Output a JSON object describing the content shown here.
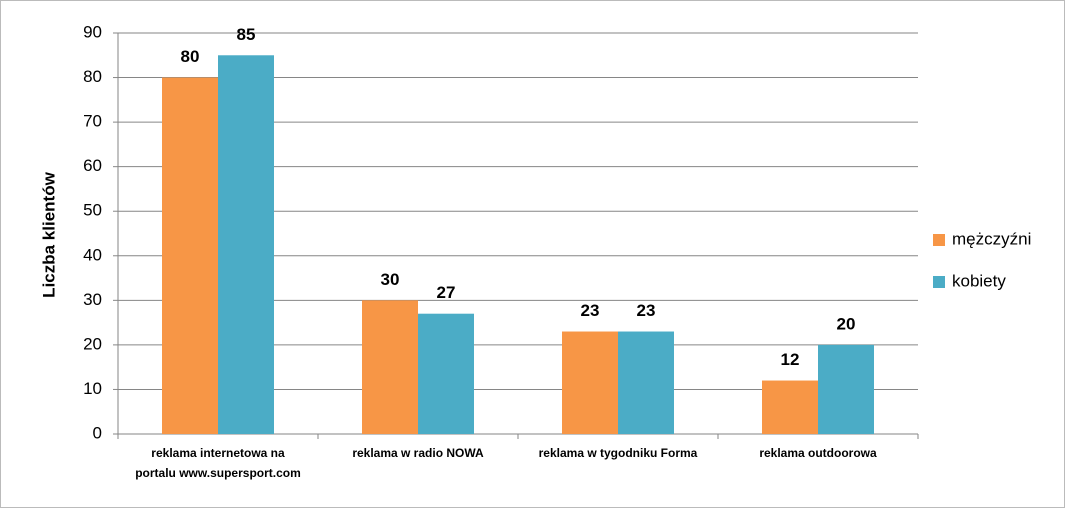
{
  "chart_data": {
    "type": "bar",
    "y_label": "Liczba klientów",
    "categories": [
      "reklama internetowa na portalu www.supersport.com",
      "reklama w radio NOWA",
      "reklama w tygodniku Forma",
      "reklama outdoorowa"
    ],
    "series": [
      {
        "name": "mężczyźni",
        "color": "#f79646",
        "values": [
          80,
          30,
          23,
          12
        ]
      },
      {
        "name": "kobiety",
        "color": "#4bacc6",
        "values": [
          85,
          27,
          23,
          20
        ]
      }
    ],
    "ylim": [
      0,
      90
    ],
    "yticks": [
      0,
      10,
      20,
      30,
      40,
      50,
      60,
      70,
      80,
      90
    ],
    "grid": true,
    "legend": "right"
  }
}
